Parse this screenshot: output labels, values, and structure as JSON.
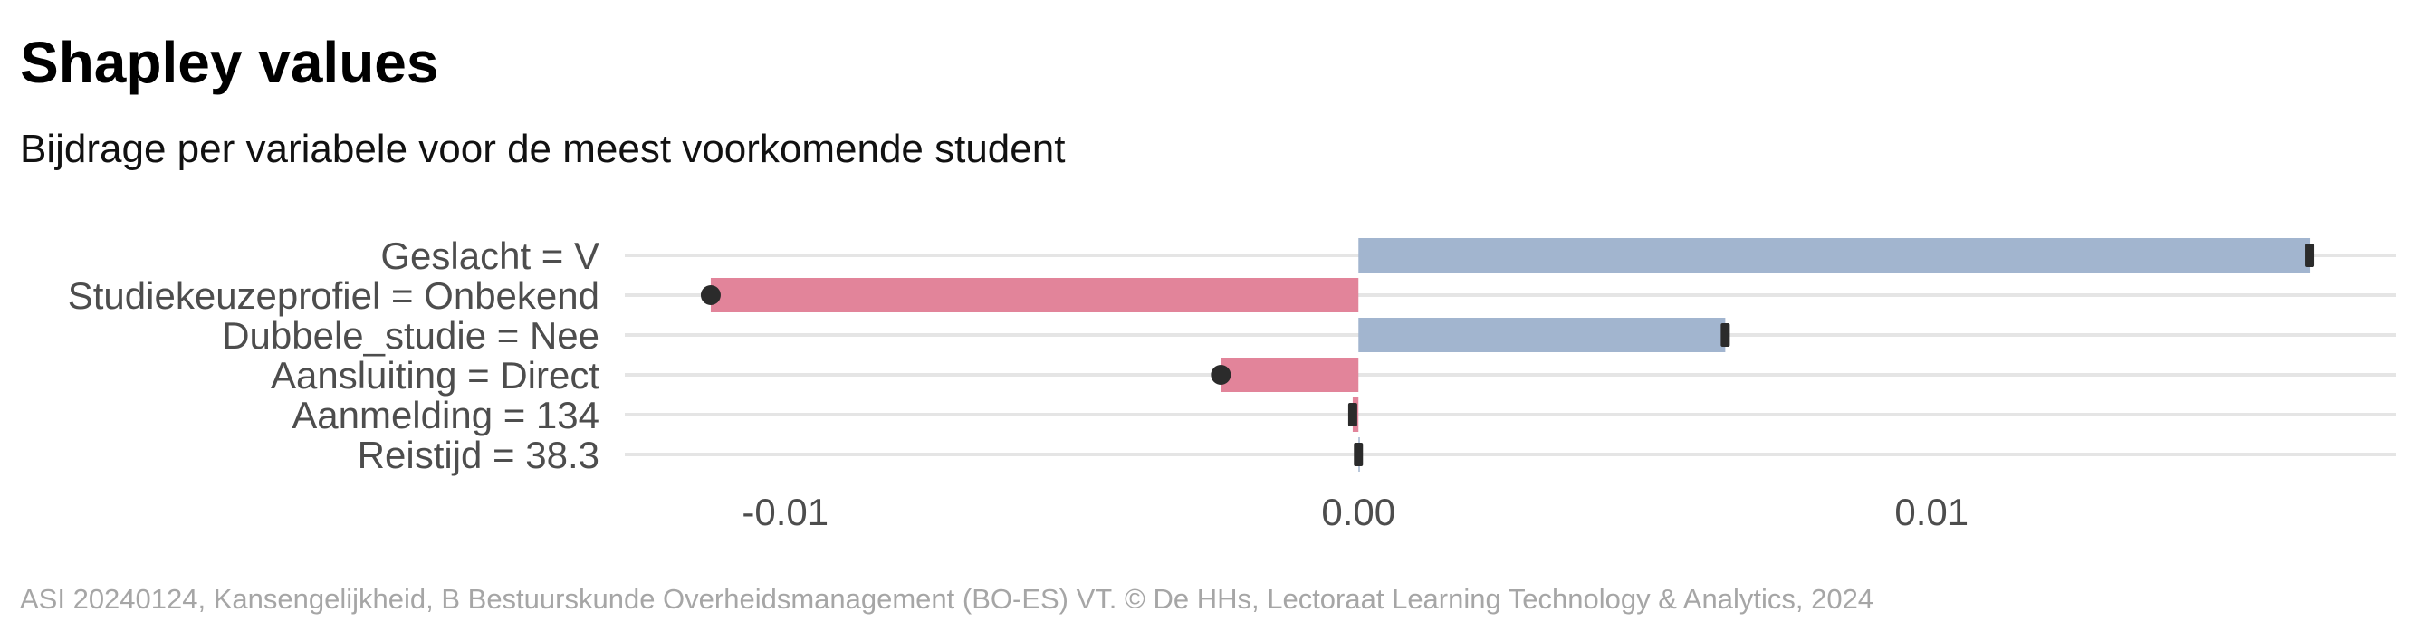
{
  "title": "Shapley values",
  "subtitle": "Bijdrage per variabele voor de meest voorkomende student",
  "caption": "ASI 20240124, Kansengelijkheid, B Bestuurskunde Overheidsmanagement (BO-ES) VT. © De HHs, Lectoraat Learning Technology & Analytics, 2024",
  "colors": {
    "positive": "#a2b5cf",
    "negative": "#e2849a",
    "marker": "#2b2b2b",
    "grid": "#e5e5e5"
  },
  "chart_data": {
    "type": "bar",
    "orientation": "horizontal",
    "title": "Shapley values",
    "subtitle": "Bijdrage per variabele voor de meest voorkomende student",
    "xlabel": "",
    "ylabel": "",
    "xlim": [
      -0.0128,
      0.0181
    ],
    "xticks": [
      -0.01,
      0.0,
      0.01
    ],
    "xtick_labels": [
      "-0.01",
      "0.00",
      "0.01"
    ],
    "grid": "horizontal",
    "categories": [
      "Geslacht = V",
      "Studiekeuzeprofiel = Onbekend",
      "Dubbele_studie = Nee",
      "Aansluiting = Direct",
      "Aanmelding = 134",
      "Reistijd = 38.3"
    ],
    "values": [
      0.0166,
      -0.0113,
      0.0064,
      -0.0024,
      -0.0001,
      0.0
    ]
  }
}
